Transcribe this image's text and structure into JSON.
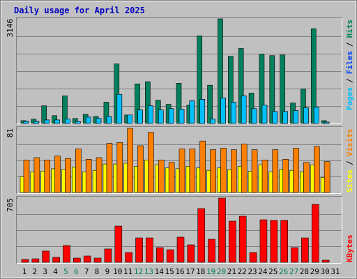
{
  "chart_data": [
    {
      "type": "bar",
      "title": "Daily usage for April 2025",
      "ylim": [
        0,
        3146
      ],
      "yticks": [
        3146
      ],
      "grid": true,
      "legend_separator": "/",
      "series": [
        {
          "name": "Hits",
          "color": "#00805c",
          "values": [
            85,
            130,
            530,
            235,
            830,
            150,
            275,
            210,
            640,
            1790,
            255,
            1190,
            1255,
            700,
            575,
            1210,
            550,
            2635,
            1150,
            3146,
            2020,
            2255,
            915,
            2085,
            2040,
            2060,
            615,
            1040,
            2850,
            85,
            0
          ]
        },
        {
          "name": "Files",
          "color": "#0040ff",
          "values": [
            60,
            60,
            105,
            105,
            130,
            60,
            190,
            150,
            210,
            875,
            255,
            405,
            530,
            405,
            445,
            425,
            680,
            725,
            130,
            765,
            640,
            830,
            445,
            550,
            360,
            360,
            385,
            470,
            490,
            40,
            0
          ]
        },
        {
          "name": "Pages",
          "color": "#00c0ff",
          "values": [
            60,
            60,
            105,
            105,
            130,
            60,
            190,
            150,
            210,
            875,
            255,
            405,
            530,
            405,
            445,
            425,
            680,
            725,
            130,
            765,
            640,
            830,
            445,
            550,
            360,
            360,
            385,
            470,
            490,
            40,
            0
          ]
        }
      ]
    },
    {
      "type": "bar",
      "ylim": [
        0,
        81
      ],
      "yticks": [
        81
      ],
      "grid": true,
      "legend_separator": "/",
      "series": [
        {
          "name": "Visits",
          "color": "#ff8000",
          "values": [
            41,
            44,
            41,
            46,
            43,
            55,
            42,
            44,
            62,
            63,
            81,
            59,
            76,
            41,
            38,
            55,
            55,
            65,
            54,
            56,
            54,
            61,
            54,
            41,
            54,
            42,
            56,
            38,
            58,
            39,
            0
          ]
        },
        {
          "name": "Sites",
          "color": "#ffff00",
          "values": [
            20,
            26,
            27,
            30,
            29,
            32,
            26,
            28,
            36,
            36,
            37,
            33,
            41,
            35,
            31,
            30,
            33,
            31,
            28,
            31,
            29,
            33,
            27,
            35,
            26,
            29,
            28,
            26,
            35,
            19,
            0
          ]
        }
      ]
    },
    {
      "type": "bar",
      "ylim": [
        0,
        705
      ],
      "yticks": [
        705
      ],
      "grid": true,
      "categories": [
        "1",
        "2",
        "3",
        "4",
        "5",
        "6",
        "7",
        "8",
        "9",
        "10",
        "11",
        "12",
        "13",
        "14",
        "15",
        "16",
        "17",
        "18",
        "19",
        "20",
        "21",
        "22",
        "23",
        "24",
        "25",
        "26",
        "27",
        "28",
        "29",
        "30",
        "31"
      ],
      "category_colors": [
        "#000000",
        "#000000",
        "#000000",
        "#000000",
        "#00805c",
        "#00805c",
        "#000000",
        "#000000",
        "#000000",
        "#000000",
        "#000000",
        "#00805c",
        "#00805c",
        "#000000",
        "#000000",
        "#000000",
        "#000000",
        "#000000",
        "#00805c",
        "#00805c",
        "#000000",
        "#000000",
        "#000000",
        "#000000",
        "#000000",
        "#00805c",
        "#00805c",
        "#000000",
        "#000000",
        "#000000",
        "#000000"
      ],
      "series": [
        {
          "name": "KBytes",
          "color": "#ff0000",
          "values": [
            31,
            38,
            123,
            54,
            184,
            46,
            69,
            46,
            146,
            398,
            107,
            268,
            268,
            161,
            138,
            276,
            192,
            590,
            253,
            705,
            452,
            506,
            107,
            467,
            460,
            460,
            161,
            268,
            636,
            23,
            0
          ]
        }
      ]
    }
  ]
}
